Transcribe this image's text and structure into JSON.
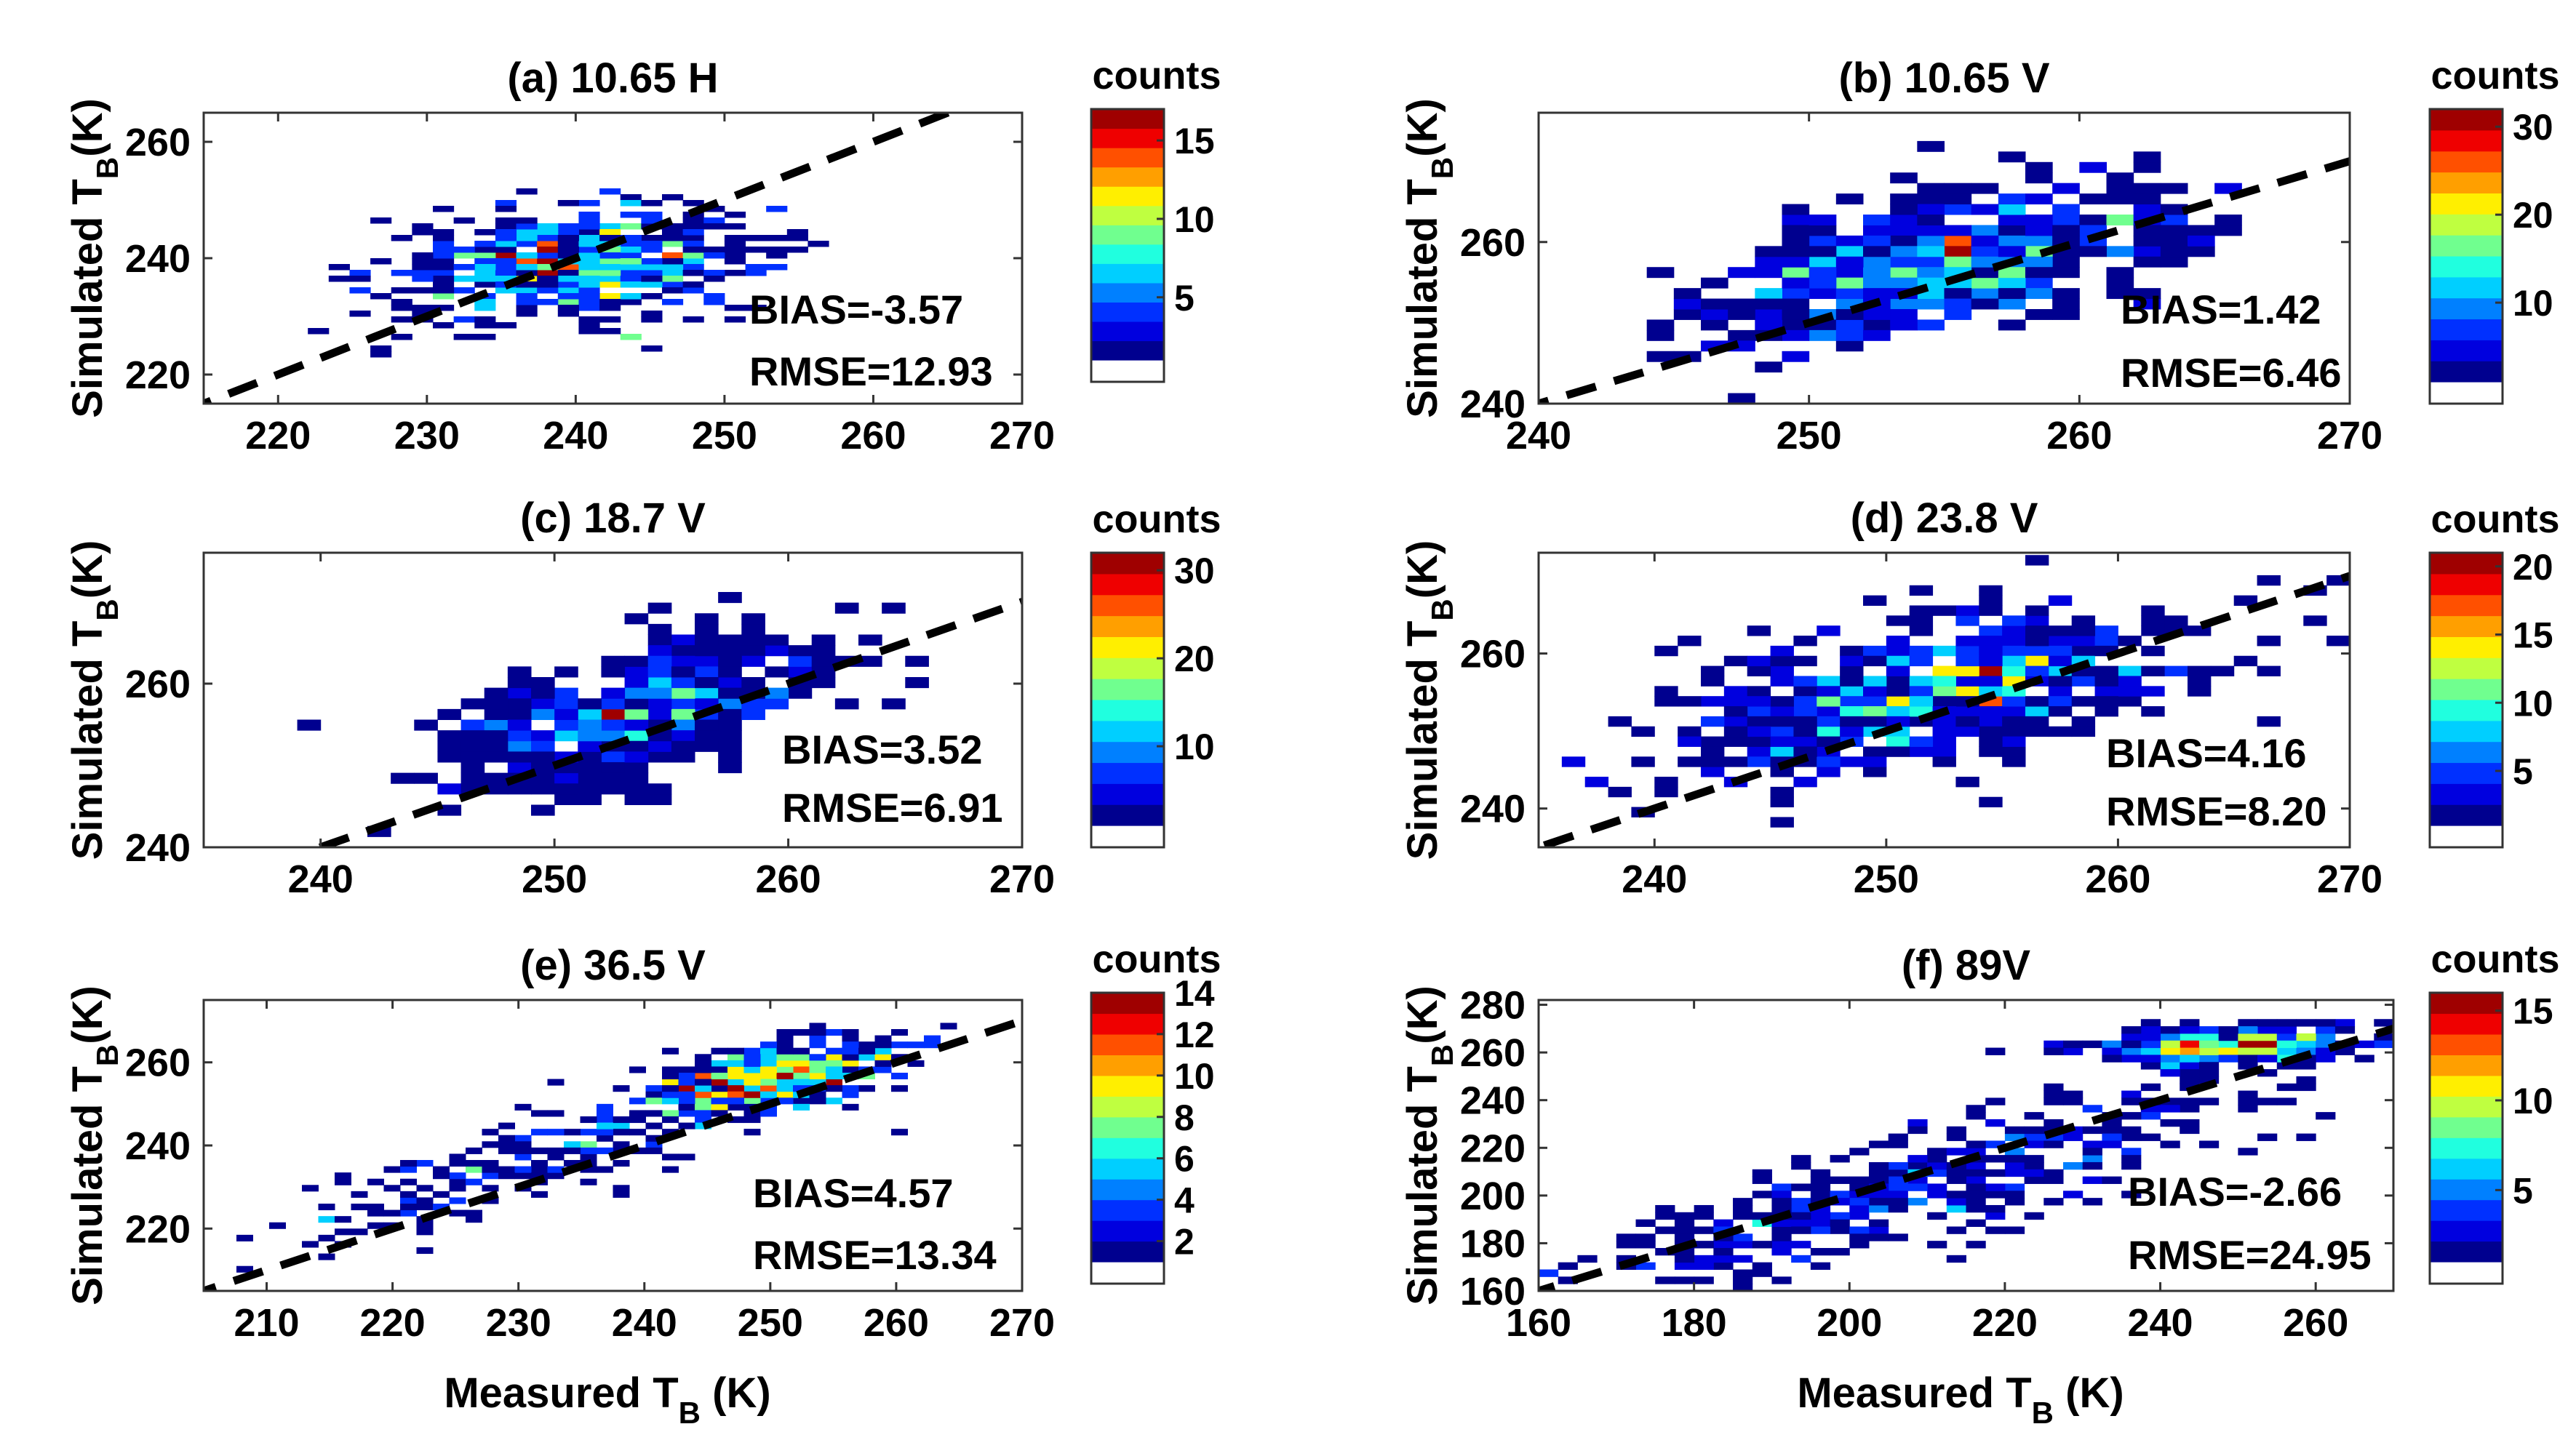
{
  "figure": {
    "colorbar_label": "counts",
    "ylabel": "Simulated T",
    "ylabel_sub": "B",
    "ylabel_unit": "(K)",
    "xlabel": "Measured T",
    "xlabel_sub": "B",
    "xlabel_unit": " (K)",
    "colormap": [
      "#00008f",
      "#0000df",
      "#0030ff",
      "#0080ff",
      "#00cfff",
      "#20ffdf",
      "#70ff8f",
      "#bfff40",
      "#ffef00",
      "#ff9f00",
      "#ff5000",
      "#ef0000",
      "#9f0000"
    ]
  },
  "chart_data": [
    {
      "type": "heatmap",
      "title": "(a) 10.65 H",
      "bias": "BIAS=-3.57",
      "rmse": "RMSE=12.93",
      "xlim": [
        215,
        270
      ],
      "ylim": [
        215,
        265
      ],
      "xticks": [
        220,
        230,
        240,
        250,
        260,
        270
      ],
      "yticks": [
        220,
        240,
        260
      ],
      "clim": [
        1,
        17
      ],
      "cticks": [
        5,
        10,
        15
      ],
      "x_bin": 1.4,
      "y_bin": 1.0,
      "clusters": [
        {
          "cx": 240,
          "cy": 239,
          "sx": 6.5,
          "sy": 4.8,
          "rho": 0.15,
          "peak": 17,
          "n": 520
        }
      ],
      "one_to_one": true
    },
    {
      "type": "heatmap",
      "title": "(b) 10.65 V",
      "bias": "BIAS=1.42",
      "rmse": "RMSE=6.46",
      "xlim": [
        240,
        270
      ],
      "ylim": [
        240,
        276
      ],
      "xticks": [
        240,
        250,
        260,
        270
      ],
      "yticks": [
        240,
        260
      ],
      "clim": [
        1,
        32
      ],
      "cticks": [
        10,
        20,
        30
      ],
      "x_bin": 1.0,
      "y_bin": 1.3,
      "clusters": [
        {
          "cx": 255,
          "cy": 257,
          "sx": 4.4,
          "sy": 5.2,
          "rho": 0.5,
          "peak": 30,
          "n": 460
        }
      ],
      "one_to_one": true
    },
    {
      "type": "heatmap",
      "title": "(c) 18.7 V",
      "bias": "BIAS=3.52",
      "rmse": "RMSE=6.91",
      "xlim": [
        235,
        270
      ],
      "ylim": [
        240,
        276
      ],
      "xticks": [
        240,
        250,
        260,
        270
      ],
      "yticks": [
        240,
        260
      ],
      "clim": [
        1,
        32
      ],
      "cticks": [
        10,
        20,
        30
      ],
      "x_bin": 1.0,
      "y_bin": 1.3,
      "clusters": [
        {
          "cx": 253,
          "cy": 256,
          "sx": 4.2,
          "sy": 5.0,
          "rho": 0.55,
          "peak": 30,
          "n": 460
        }
      ],
      "one_to_one": true
    },
    {
      "type": "heatmap",
      "title": "(d) 23.8  V",
      "bias": "BIAS=4.16",
      "rmse": "RMSE=8.20",
      "xlim": [
        235,
        270
      ],
      "ylim": [
        235,
        273
      ],
      "xticks": [
        240,
        250,
        260,
        270
      ],
      "yticks": [
        240,
        260
      ],
      "clim": [
        1,
        21
      ],
      "cticks": [
        5,
        10,
        15,
        20
      ],
      "x_bin": 1.0,
      "y_bin": 1.3,
      "clusters": [
        {
          "cx": 252,
          "cy": 255,
          "sx": 5.8,
          "sy": 5.8,
          "rho": 0.55,
          "peak": 20,
          "n": 540
        }
      ],
      "one_to_one": true
    },
    {
      "type": "heatmap",
      "title": "(e) 36.5 V",
      "bias": "BIAS=4.57",
      "rmse": "RMSE=13.34",
      "xlim": [
        205,
        270
      ],
      "ylim": [
        205,
        275
      ],
      "xticks": [
        210,
        220,
        230,
        240,
        250,
        260,
        270
      ],
      "yticks": [
        220,
        240,
        260
      ],
      "clim": [
        1,
        14
      ],
      "cticks": [
        2,
        4,
        6,
        8,
        10,
        12,
        14
      ],
      "x_bin": 1.3,
      "y_bin": 1.5,
      "clusters": [
        {
          "cx": 250,
          "cy": 256,
          "sx": 5.5,
          "sy": 5.5,
          "rho": 0.6,
          "peak": 14,
          "n": 420
        },
        {
          "cx": 228,
          "cy": 234,
          "sx": 10.0,
          "sy": 10.0,
          "rho": 0.85,
          "peak": 3,
          "n": 170
        }
      ],
      "one_to_one": true
    },
    {
      "type": "heatmap",
      "title": "(f) 89V",
      "bias": "BIAS=-2.66",
      "rmse": "RMSE=24.95",
      "xlim": [
        160,
        270
      ],
      "ylim": [
        160,
        282
      ],
      "xticks": [
        160,
        180,
        200,
        220,
        240,
        260
      ],
      "yticks": [
        160,
        180,
        200,
        220,
        240,
        260,
        280
      ],
      "clim": [
        1,
        16
      ],
      "cticks": [
        5,
        10,
        15
      ],
      "x_bin": 2.5,
      "y_bin": 3.0,
      "clusters": [
        {
          "cx": 248,
          "cy": 263,
          "sx": 9.0,
          "sy": 4.0,
          "rho": 0.3,
          "peak": 15,
          "n": 300
        },
        {
          "cx": 210,
          "cy": 205,
          "sx": 22.0,
          "sy": 22.0,
          "rho": 0.85,
          "peak": 5,
          "n": 420
        }
      ],
      "one_to_one": true
    }
  ]
}
